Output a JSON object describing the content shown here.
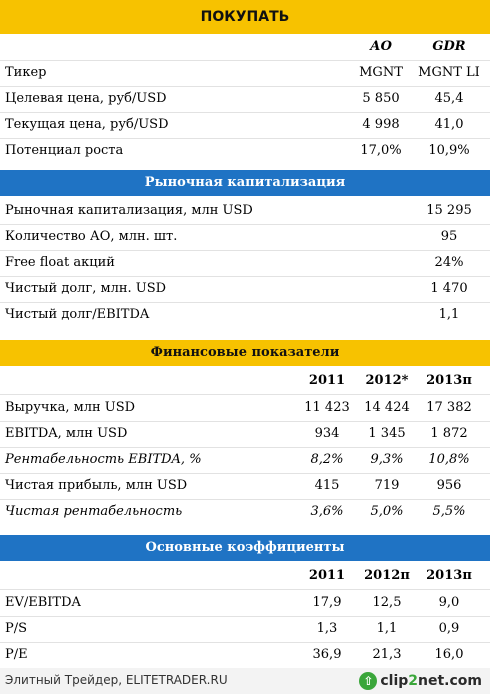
{
  "buy": {
    "title": "ПОКУПАТЬ",
    "col1": "АО",
    "col2": "GDR",
    "rows": [
      {
        "label": "Тикер",
        "v1": "MGNT",
        "v2": "MGNT LI"
      },
      {
        "label": "Целевая цена, руб/USD",
        "v1": "5 850",
        "v2": "45,4"
      },
      {
        "label": "Текущая цена, руб/USD",
        "v1": "4 998",
        "v2": "41,0"
      },
      {
        "label": "Потенциал роста",
        "v1": "17,0%",
        "v2": "10,9%"
      }
    ]
  },
  "cap": {
    "title": "Рыночная капитализация",
    "rows": [
      {
        "label": "Рыночная капитализация, млн USD",
        "value": "15 295"
      },
      {
        "label": "Количество АО, млн. шт.",
        "value": "95"
      },
      {
        "label": "Free float акций",
        "value": "24%"
      },
      {
        "label": "Чистый долг, млн. USD",
        "value": "1 470"
      },
      {
        "label": "Чистый долг/EBITDA",
        "value": "1,1"
      }
    ]
  },
  "fin": {
    "title": "Финансовые показатели",
    "years": [
      "2011",
      "2012*",
      "2013п"
    ],
    "rows": [
      {
        "label": "Выручка, млн USD",
        "values": [
          "11 423",
          "14 424",
          "17 382"
        ]
      },
      {
        "label": "EBITDA, млн USD",
        "values": [
          "934",
          "1 345",
          "1 872"
        ]
      },
      {
        "label": "Рентабельность EBITDA, %",
        "values": [
          "8,2%",
          "9,3%",
          "10,8%"
        ]
      },
      {
        "label": "Чистая прибыль, млн USD",
        "values": [
          "415",
          "719",
          "956"
        ]
      },
      {
        "label": "Чистая рентабельность",
        "values": [
          "3,6%",
          "5,0%",
          "5,5%"
        ]
      }
    ]
  },
  "ratios": {
    "title": "Основные коэффициенты",
    "years": [
      "2011",
      "2012п",
      "2013п"
    ],
    "rows": [
      {
        "label": "EV/EBITDA",
        "values": [
          "17,9",
          "12,5",
          "9,0"
        ]
      },
      {
        "label": "P/S",
        "values": [
          "1,3",
          "1,1",
          "0,9"
        ]
      },
      {
        "label": "P/E",
        "values": [
          "36,9",
          "21,3",
          "16,0"
        ]
      }
    ]
  },
  "footer": {
    "source": "Элитный Трейдер, ELITETRADER.RU",
    "logo_part1": "clip",
    "logo_part2": "2",
    "logo_part3": "net",
    "logo_tld": ".com",
    "logo_icon": "arrow-up-icon"
  }
}
